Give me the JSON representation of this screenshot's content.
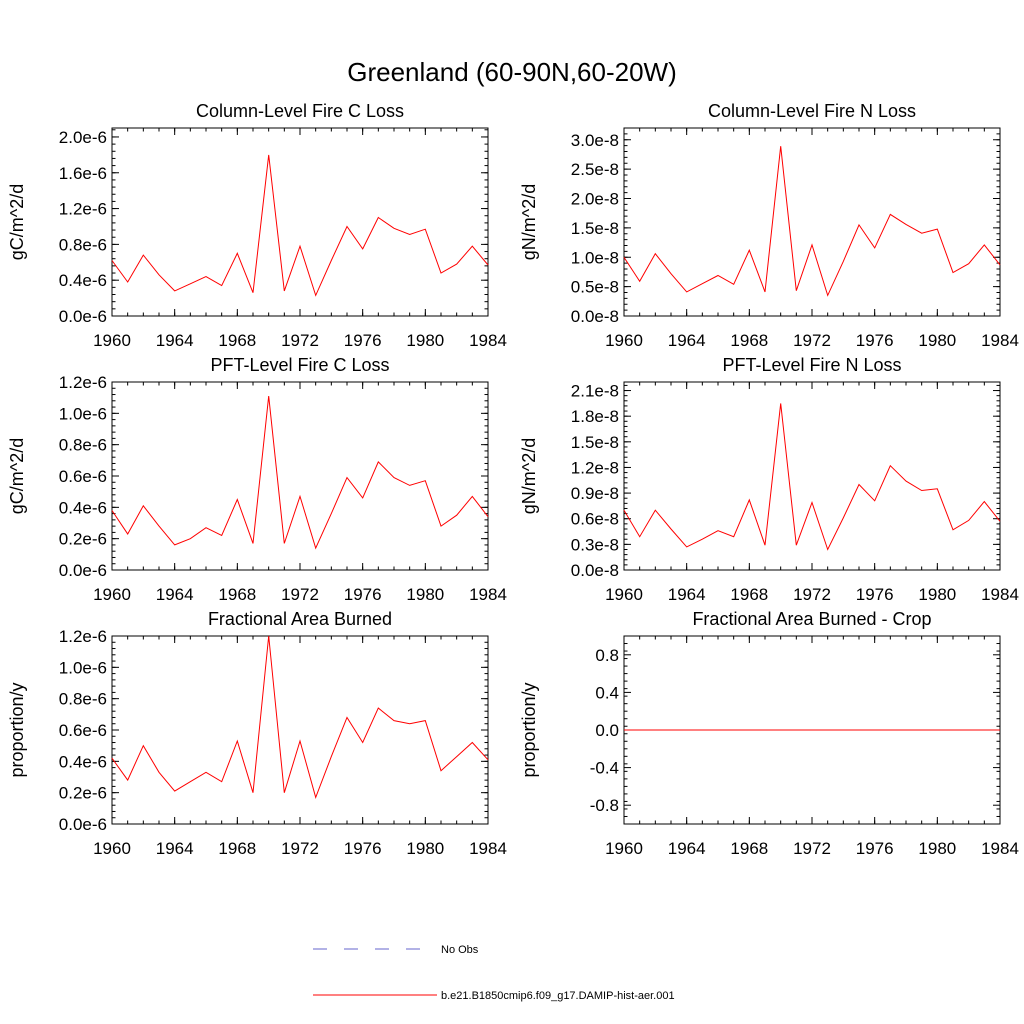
{
  "figure": {
    "title": "Greenland (60-90N,60-20W)",
    "series_color": "#ff0000",
    "obs_color": "#6666cc"
  },
  "legend": {
    "obs_label": "No Obs",
    "model_label": "b.e21.B1850cmip6.f09_g17.DAMIP-hist-aer.001"
  },
  "chart_data": [
    {
      "type": "line",
      "title": "Column-Level Fire C Loss",
      "ylabel": "gC/m^2/d",
      "xlim": [
        1960,
        1984
      ],
      "ylim": [
        0,
        2.1e-06
      ],
      "yticks": [
        0,
        4e-07,
        8e-07,
        1.2e-06,
        1.6e-06,
        2e-06
      ],
      "ytick_labels": [
        "0.0e-6",
        "0.4e-6",
        "0.8e-6",
        "1.2e-6",
        "1.6e-6",
        "2.0e-6"
      ],
      "xticks": [
        1960,
        1964,
        1968,
        1972,
        1976,
        1980,
        1984
      ],
      "x": [
        1960,
        1961,
        1962,
        1963,
        1964,
        1965,
        1966,
        1967,
        1968,
        1969,
        1970,
        1971,
        1972,
        1973,
        1974,
        1975,
        1976,
        1977,
        1978,
        1979,
        1980,
        1981,
        1982,
        1983,
        1984
      ],
      "series": [
        {
          "values": [
            6.2e-07,
            3.8e-07,
            6.8e-07,
            4.6e-07,
            2.8e-07,
            3.6e-07,
            4.4e-07,
            3.4e-07,
            7e-07,
            2.6e-07,
            1.8e-06,
            2.8e-07,
            7.8e-07,
            2.3e-07,
            6.2e-07,
            1e-06,
            7.5e-07,
            1.1e-06,
            9.8e-07,
            9.1e-07,
            9.7e-07,
            4.8e-07,
            5.8e-07,
            7.8e-07,
            5.7e-07
          ]
        }
      ]
    },
    {
      "type": "line",
      "title": "Column-Level Fire N Loss",
      "ylabel": "gN/m^2/d",
      "xlim": [
        1960,
        1984
      ],
      "ylim": [
        0,
        3.2e-08
      ],
      "yticks": [
        0,
        5e-09,
        1e-08,
        1.5e-08,
        2e-08,
        2.5e-08,
        3e-08
      ],
      "ytick_labels": [
        "0.0e-8",
        "0.5e-8",
        "1.0e-8",
        "1.5e-8",
        "2.0e-8",
        "2.5e-8",
        "3.0e-8"
      ],
      "xticks": [
        1960,
        1964,
        1968,
        1972,
        1976,
        1980,
        1984
      ],
      "x": [
        1960,
        1961,
        1962,
        1963,
        1964,
        1965,
        1966,
        1967,
        1968,
        1969,
        1970,
        1971,
        1972,
        1973,
        1974,
        1975,
        1976,
        1977,
        1978,
        1979,
        1980,
        1981,
        1982,
        1983,
        1984
      ],
      "series": [
        {
          "values": [
            1e-08,
            5.9e-09,
            1.06e-08,
            7.2e-09,
            4.1e-09,
            5.5e-09,
            6.9e-09,
            5.4e-09,
            1.12e-08,
            4.1e-09,
            2.89e-08,
            4.3e-09,
            1.21e-08,
            3.5e-09,
            9.3e-09,
            1.55e-08,
            1.16e-08,
            1.73e-08,
            1.56e-08,
            1.41e-08,
            1.48e-08,
            7.4e-09,
            8.9e-09,
            1.21e-08,
            8.7e-09
          ]
        }
      ]
    },
    {
      "type": "line",
      "title": "PFT-Level Fire C Loss",
      "ylabel": "gC/m^2/d",
      "xlim": [
        1960,
        1984
      ],
      "ylim": [
        0,
        1.2e-06
      ],
      "yticks": [
        0,
        2e-07,
        4e-07,
        6e-07,
        8e-07,
        1e-06,
        1.2e-06
      ],
      "ytick_labels": [
        "0.0e-6",
        "0.2e-6",
        "0.4e-6",
        "0.6e-6",
        "0.8e-6",
        "1.0e-6",
        "1.2e-6"
      ],
      "xticks": [
        1960,
        1964,
        1968,
        1972,
        1976,
        1980,
        1984
      ],
      "x": [
        1960,
        1961,
        1962,
        1963,
        1964,
        1965,
        1966,
        1967,
        1968,
        1969,
        1970,
        1971,
        1972,
        1973,
        1974,
        1975,
        1976,
        1977,
        1978,
        1979,
        1980,
        1981,
        1982,
        1983,
        1984
      ],
      "series": [
        {
          "values": [
            3.8e-07,
            2.3e-07,
            4.1e-07,
            2.8e-07,
            1.6e-07,
            2e-07,
            2.7e-07,
            2.2e-07,
            4.5e-07,
            1.7e-07,
            1.11e-06,
            1.7e-07,
            4.7e-07,
            1.4e-07,
            3.6e-07,
            5.9e-07,
            4.6e-07,
            6.9e-07,
            5.9e-07,
            5.4e-07,
            5.7e-07,
            2.8e-07,
            3.5e-07,
            4.7e-07,
            3.4e-07
          ]
        }
      ]
    },
    {
      "type": "line",
      "title": "PFT-Level Fire N Loss",
      "ylabel": "gN/m^2/d",
      "xlim": [
        1960,
        1984
      ],
      "ylim": [
        0,
        2.2e-08
      ],
      "yticks": [
        0,
        3e-09,
        6e-09,
        9e-09,
        1.2e-08,
        1.5e-08,
        1.8e-08,
        2.1e-08
      ],
      "ytick_labels": [
        "0.0e-8",
        "0.3e-8",
        "0.6e-8",
        "0.9e-8",
        "1.2e-8",
        "1.5e-8",
        "1.8e-8",
        "2.1e-8"
      ],
      "xticks": [
        1960,
        1964,
        1968,
        1972,
        1976,
        1980,
        1984
      ],
      "x": [
        1960,
        1961,
        1962,
        1963,
        1964,
        1965,
        1966,
        1967,
        1968,
        1969,
        1970,
        1971,
        1972,
        1973,
        1974,
        1975,
        1976,
        1977,
        1978,
        1979,
        1980,
        1981,
        1982,
        1983,
        1984
      ],
      "series": [
        {
          "values": [
            7e-09,
            3.9e-09,
            7e-09,
            4.8e-09,
            2.7e-09,
            3.6e-09,
            4.6e-09,
            3.9e-09,
            8.2e-09,
            2.9e-09,
            1.95e-08,
            2.9e-09,
            7.9e-09,
            2.4e-09,
            6.1e-09,
            1e-08,
            8.1e-09,
            1.22e-08,
            1.04e-08,
            9.3e-09,
            9.5e-09,
            4.7e-09,
            5.8e-09,
            8e-09,
            5.7e-09
          ]
        }
      ]
    },
    {
      "type": "line",
      "title": "Fractional Area Burned",
      "ylabel": "proportion/y",
      "xlim": [
        1960,
        1984
      ],
      "ylim": [
        0,
        1.2e-06
      ],
      "yticks": [
        0,
        2e-07,
        4e-07,
        6e-07,
        8e-07,
        1e-06,
        1.2e-06
      ],
      "ytick_labels": [
        "0.0e-6",
        "0.2e-6",
        "0.4e-6",
        "0.6e-6",
        "0.8e-6",
        "1.0e-6",
        "1.2e-6"
      ],
      "xticks": [
        1960,
        1964,
        1968,
        1972,
        1976,
        1980,
        1984
      ],
      "x": [
        1960,
        1961,
        1962,
        1963,
        1964,
        1965,
        1966,
        1967,
        1968,
        1969,
        1970,
        1971,
        1972,
        1973,
        1974,
        1975,
        1976,
        1977,
        1978,
        1979,
        1980,
        1981,
        1982,
        1983,
        1984
      ],
      "series": [
        {
          "values": [
            4.2e-07,
            2.8e-07,
            5e-07,
            3.3e-07,
            2.1e-07,
            2.7e-07,
            3.3e-07,
            2.7e-07,
            5.3e-07,
            2e-07,
            1.2e-06,
            2e-07,
            5.3e-07,
            1.7e-07,
            4.3e-07,
            6.8e-07,
            5.2e-07,
            7.4e-07,
            6.6e-07,
            6.4e-07,
            6.6e-07,
            3.4e-07,
            4.3e-07,
            5.2e-07,
            4.1e-07
          ]
        }
      ]
    },
    {
      "type": "line",
      "title": "Fractional Area Burned - Crop",
      "ylabel": "proportion/y",
      "xlim": [
        1960,
        1984
      ],
      "ylim": [
        -1.0,
        1.0
      ],
      "yticks": [
        -0.8,
        -0.4,
        0,
        0.4,
        0.8
      ],
      "ytick_labels": [
        "-0.8",
        "-0.4",
        "0.0",
        "0.4",
        "0.8"
      ],
      "xticks": [
        1960,
        1964,
        1968,
        1972,
        1976,
        1980,
        1984
      ],
      "x": [
        1960,
        1961,
        1962,
        1963,
        1964,
        1965,
        1966,
        1967,
        1968,
        1969,
        1970,
        1971,
        1972,
        1973,
        1974,
        1975,
        1976,
        1977,
        1978,
        1979,
        1980,
        1981,
        1982,
        1983,
        1984
      ],
      "series": [
        {
          "values": [
            0,
            0,
            0,
            0,
            0,
            0,
            0,
            0,
            0,
            0,
            0,
            0,
            0,
            0,
            0,
            0,
            0,
            0,
            0,
            0,
            0,
            0,
            0,
            0,
            0
          ]
        }
      ]
    }
  ]
}
